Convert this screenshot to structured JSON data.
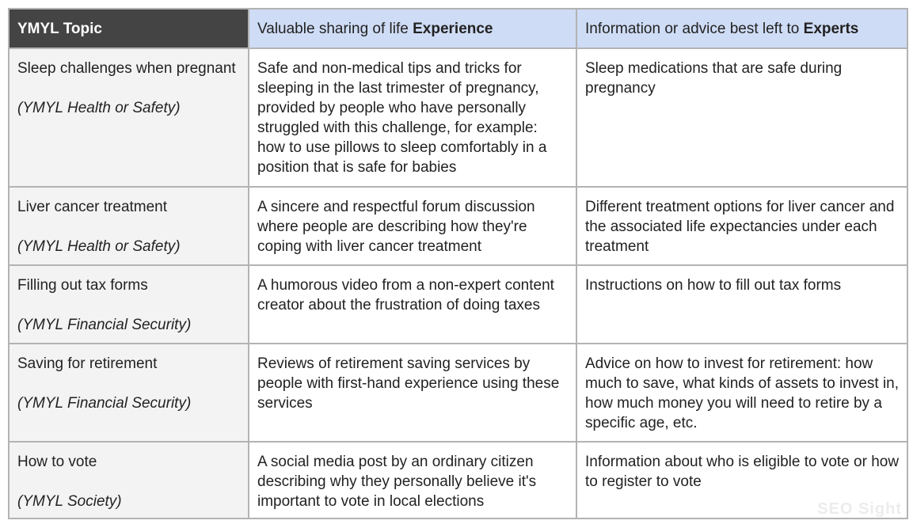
{
  "header": {
    "topic": "YMYL Topic",
    "experience_prefix": "Valuable sharing of life ",
    "experience_bold": "Experience",
    "experts_prefix": "Information or advice best left to ",
    "experts_bold": "Experts"
  },
  "rows": [
    {
      "topic": "Sleep challenges when pregnant",
      "category": "(YMYL Health or Safety)",
      "experience": "Safe and non-medical tips and tricks for sleeping in the last trimester of pregnancy, provided by people who have personally struggled with this challenge, for example: how to use pillows to sleep comfortably in a position that is safe for babies",
      "experts": "Sleep medications that are safe during pregnancy"
    },
    {
      "topic": "Liver cancer treatment",
      "category": "(YMYL Health or Safety)",
      "experience": "A sincere and respectful forum discussion where people are describing how they're coping with liver cancer treatment",
      "experts": "Different treatment options for liver cancer and the associated life expectancies under each treatment"
    },
    {
      "topic": "Filling out tax forms",
      "category": "(YMYL Financial Security)",
      "experience": "A humorous video from a non-expert content creator about the frustration of doing taxes",
      "experts": "Instructions on how to fill out tax forms"
    },
    {
      "topic": "Saving for retirement",
      "category": "(YMYL Financial Security)",
      "experience": "Reviews of retirement saving services by people with first-hand experience using these services",
      "experts": "Advice on how to invest for retirement: how much to save, what kinds of assets to invest in, how much money you will need to retire by a specific age, etc."
    },
    {
      "topic": "How to vote",
      "category": "(YMYL Society)",
      "experience": "A social media post by an ordinary citizen describing why they personally believe it's important to vote in local elections",
      "experts": "Information about who is eligible to vote or how to register to vote"
    }
  ],
  "watermark": "SEO Sight",
  "colors": {
    "header_dark": "#444444",
    "header_light": "#cfdcf5",
    "topic_bg": "#f3f3f3",
    "border": "#b3b3b3"
  }
}
